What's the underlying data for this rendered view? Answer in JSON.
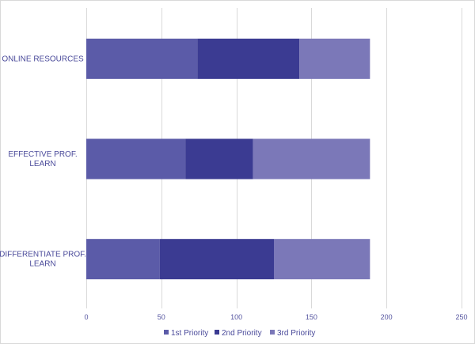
{
  "chart_data": {
    "type": "bar",
    "orientation": "horizontal",
    "stacked": true,
    "categories": [
      [
        "ONLINE RESOURCES"
      ],
      [
        "EFFECTIVE PROF.",
        "LEARN"
      ],
      [
        "DIFFERENTIATE PROF.",
        "LEARN"
      ]
    ],
    "series": [
      {
        "name": "1st Priority",
        "values": [
          74,
          66,
          49
        ],
        "color": "#5b5ba8"
      },
      {
        "name": "2nd Priority",
        "values": [
          68,
          45,
          76
        ],
        "color": "#3b3b92"
      },
      {
        "name": "3rd Priority",
        "values": [
          47,
          78,
          64
        ],
        "color": "#7b78b8"
      }
    ],
    "xlim": [
      0,
      250
    ],
    "xticks": [
      0,
      50,
      100,
      150,
      200,
      250
    ],
    "grid": true,
    "legend_position": "bottom"
  }
}
